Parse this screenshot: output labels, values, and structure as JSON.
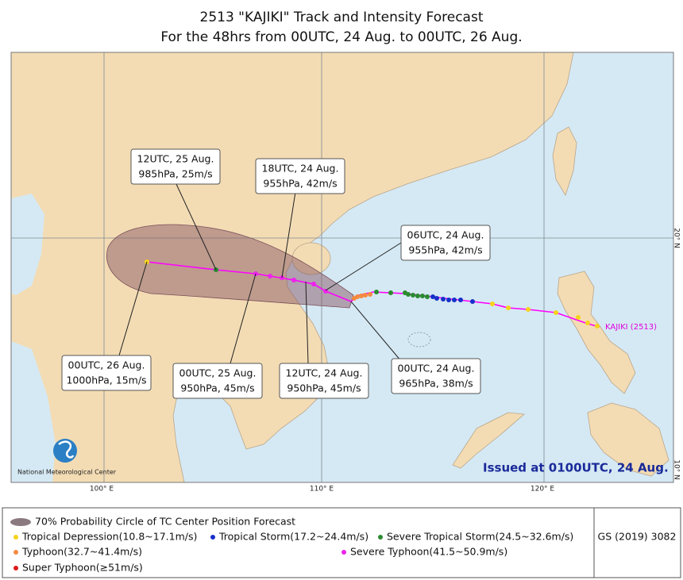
{
  "header": {
    "title": "2513 \"KAJIKI\" Track and Intensity Forecast",
    "subtitle": "For the 48hrs from 00UTC, 24 Aug. to 00UTC, 26 Aug."
  },
  "map": {
    "axis_labels": [
      "100° E",
      "110° E",
      "120° E",
      "20° N",
      "10° N"
    ],
    "annotations": [
      {
        "time": "12UTC, 25 Aug.",
        "detail": "985hPa, 25m/s"
      },
      {
        "time": "18UTC, 24 Aug.",
        "detail": "955hPa, 42m/s"
      },
      {
        "time": "06UTC, 24 Aug.",
        "detail": "955hPa, 42m/s"
      },
      {
        "time": "00UTC, 26 Aug.",
        "detail": "1000hPa, 15m/s"
      },
      {
        "time": "00UTC, 25 Aug.",
        "detail": "950hPa, 45m/s"
      },
      {
        "time": "12UTC, 24 Aug.",
        "detail": "950hPa, 45m/s"
      },
      {
        "time": "00UTC, 24 Aug.",
        "detail": "965hPa, 38m/s"
      }
    ],
    "storm_label": "KAJIKI (2513)",
    "issued": "Issued at 0100UTC, 24 Aug.",
    "logo_text": "National Meteorological Center"
  },
  "legend": {
    "items": [
      "70% Probability Circle of TC Center Position Forecast",
      "Tropical Depression(10.8~17.1m/s)",
      "Tropical Storm(17.2~24.4m/s)",
      "Severe Tropical Storm(24.5~32.6m/s)",
      "Typhoon(32.7~41.4m/s)",
      "Severe Typhoon(41.5~50.9m/s)",
      "Super Typhoon(≥51m/s)"
    ],
    "code": "GS (2019) 3082"
  }
}
